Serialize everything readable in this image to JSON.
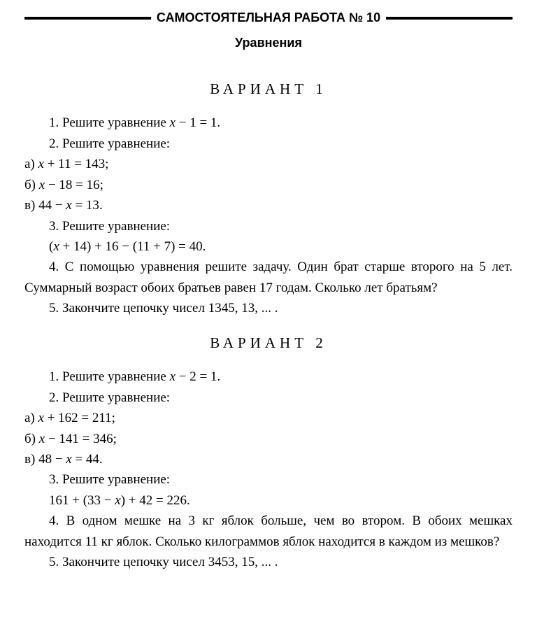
{
  "header": {
    "title": "САМОСТОЯТЕЛЬНАЯ РАБОТА № 10",
    "subtitle": "Уравнения"
  },
  "variant1": {
    "title": "ВАРИАНТ 1",
    "p1_intro": "1. Решите уравнение ",
    "p1_eq": "x − 1 = 1.",
    "p2_intro": "2. Решите уравнение:",
    "p2a_label": "а) ",
    "p2a_eq": "x + 11 = 143;",
    "p2b_label": "б) ",
    "p2b_eq": "x − 18 = 16;",
    "p2c_label": "в) ",
    "p2c_eq": "44 − x = 13.",
    "p3_intro": "3. Решите уравнение:",
    "p3_eq": "(x + 14) + 16 − (11 + 7) = 40.",
    "p4": "4. С помощью уравнения решите задачу. Один брат старше второго на 5 лет. Суммарный возраст обоих братьев равен 17 годам. Сколько лет братьям?",
    "p5": "5. Закончите цепочку чисел 1345, 13, ... ."
  },
  "variant2": {
    "title": "ВАРИАНТ 2",
    "p1_intro": "1. Решите уравнение ",
    "p1_eq": "x − 2 = 1.",
    "p2_intro": "2. Решите уравнение:",
    "p2a_label": "а) ",
    "p2a_eq": "x + 162 = 211;",
    "p2b_label": "б) ",
    "p2b_eq": "x − 141 = 346;",
    "p2c_label": "в) ",
    "p2c_eq": "48 − x = 44.",
    "p3_intro": "3. Решите уравнение:",
    "p3_eq": "161 + (33 − x) + 42 = 226.",
    "p4": "4. В одном мешке на 3 кг яблок больше, чем во втором. В обоих мешках находится 11 кг яблок. Сколько килограммов яблок находится в каждом из мешков?",
    "p5": "5. Закончите цепочку чисел 3453, 15, ... ."
  }
}
